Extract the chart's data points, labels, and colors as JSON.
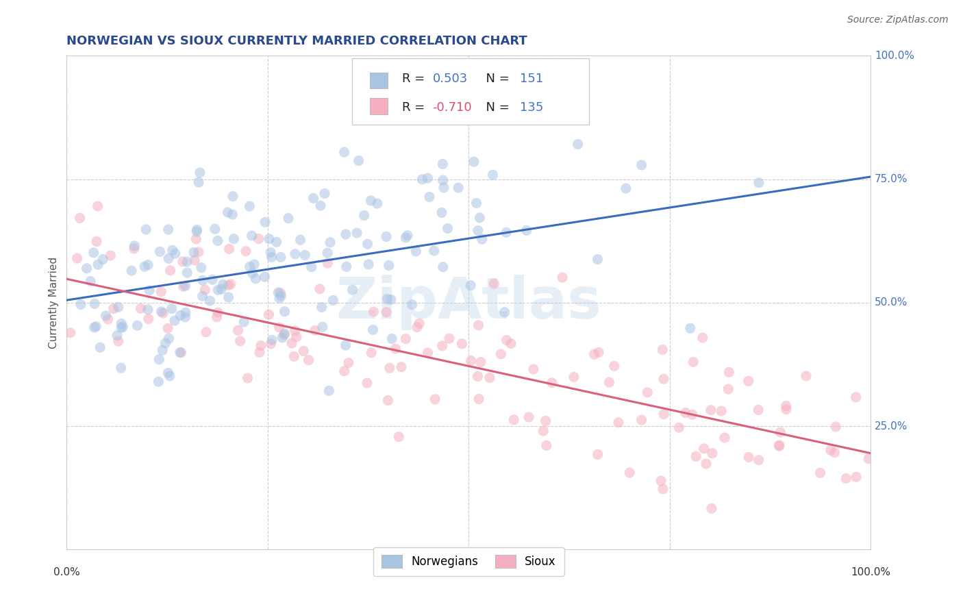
{
  "title": "NORWEGIAN VS SIOUX CURRENTLY MARRIED CORRELATION CHART",
  "source": "Source: ZipAtlas.com",
  "ylabel": "Currently Married",
  "xlim": [
    0.0,
    1.0
  ],
  "ylim": [
    0.0,
    1.0
  ],
  "norwegian_R": 0.503,
  "norwegian_N": 151,
  "sioux_R": -0.71,
  "sioux_N": 135,
  "norwegian_color": "#aac4e4",
  "sioux_color": "#f5afc0",
  "norwegian_line_color": "#3a6bbf",
  "sioux_line_color": "#d95f7a",
  "title_color": "#2b4a8b",
  "source_color": "#666666",
  "background_color": "#ffffff",
  "grid_color": "#c8c8c8",
  "watermark_text": "ZipAtlas",
  "watermark_color": "#b8cfe8",
  "watermark_alpha": 0.35,
  "legend_label1": "Norwegians",
  "legend_label2": "Sioux",
  "r_text_color_norw": "#4472c4",
  "r_text_color_sioux": "#d94f6e",
  "n_text_color": "#4472c4",
  "dot_size": 120,
  "dot_alpha": 0.55,
  "seed": 7,
  "norw_line_start_y": 0.505,
  "norw_line_end_y": 0.755,
  "sioux_line_start_y": 0.548,
  "sioux_line_end_y": 0.195
}
